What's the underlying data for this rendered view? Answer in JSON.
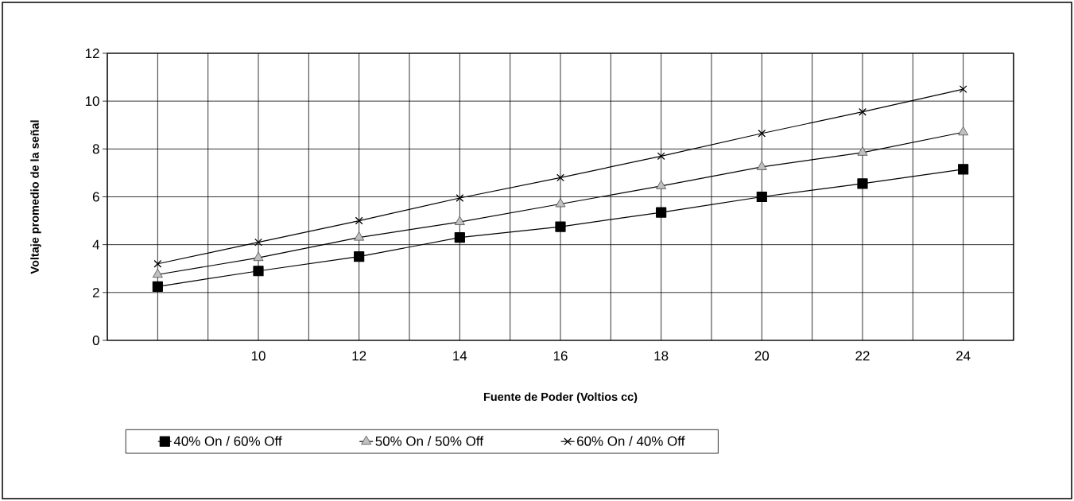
{
  "chart_data": {
    "type": "line",
    "xlabel": "Fuente de Poder (Voltios cc)",
    "ylabel": "Voltaje promedio de la señal",
    "categories": [
      null,
      "10",
      "12",
      "14",
      "16",
      "18",
      "20",
      "22",
      "24"
    ],
    "ylim": [
      0,
      12
    ],
    "yticks": [
      0,
      2,
      4,
      6,
      8,
      10,
      12
    ],
    "grid": true,
    "legend": "bottom",
    "line_style": "solid",
    "series": [
      {
        "name": "40% On / 60% Off",
        "color": "#000000",
        "marker": "square",
        "values": [
          2.25,
          2.9,
          3.5,
          4.3,
          4.75,
          5.35,
          6.0,
          6.55,
          7.15
        ]
      },
      {
        "name": "50% On / 50% Off",
        "color": "#c0c0c0",
        "marker": "triangle",
        "values": [
          2.75,
          3.45,
          4.3,
          4.95,
          5.7,
          6.45,
          7.25,
          7.85,
          8.7
        ]
      },
      {
        "name": "60% On / 40% Off",
        "color": "#000000",
        "marker": "cross",
        "values": [
          3.2,
          4.1,
          5.0,
          5.95,
          6.8,
          7.7,
          8.65,
          9.55,
          10.5
        ]
      }
    ]
  }
}
